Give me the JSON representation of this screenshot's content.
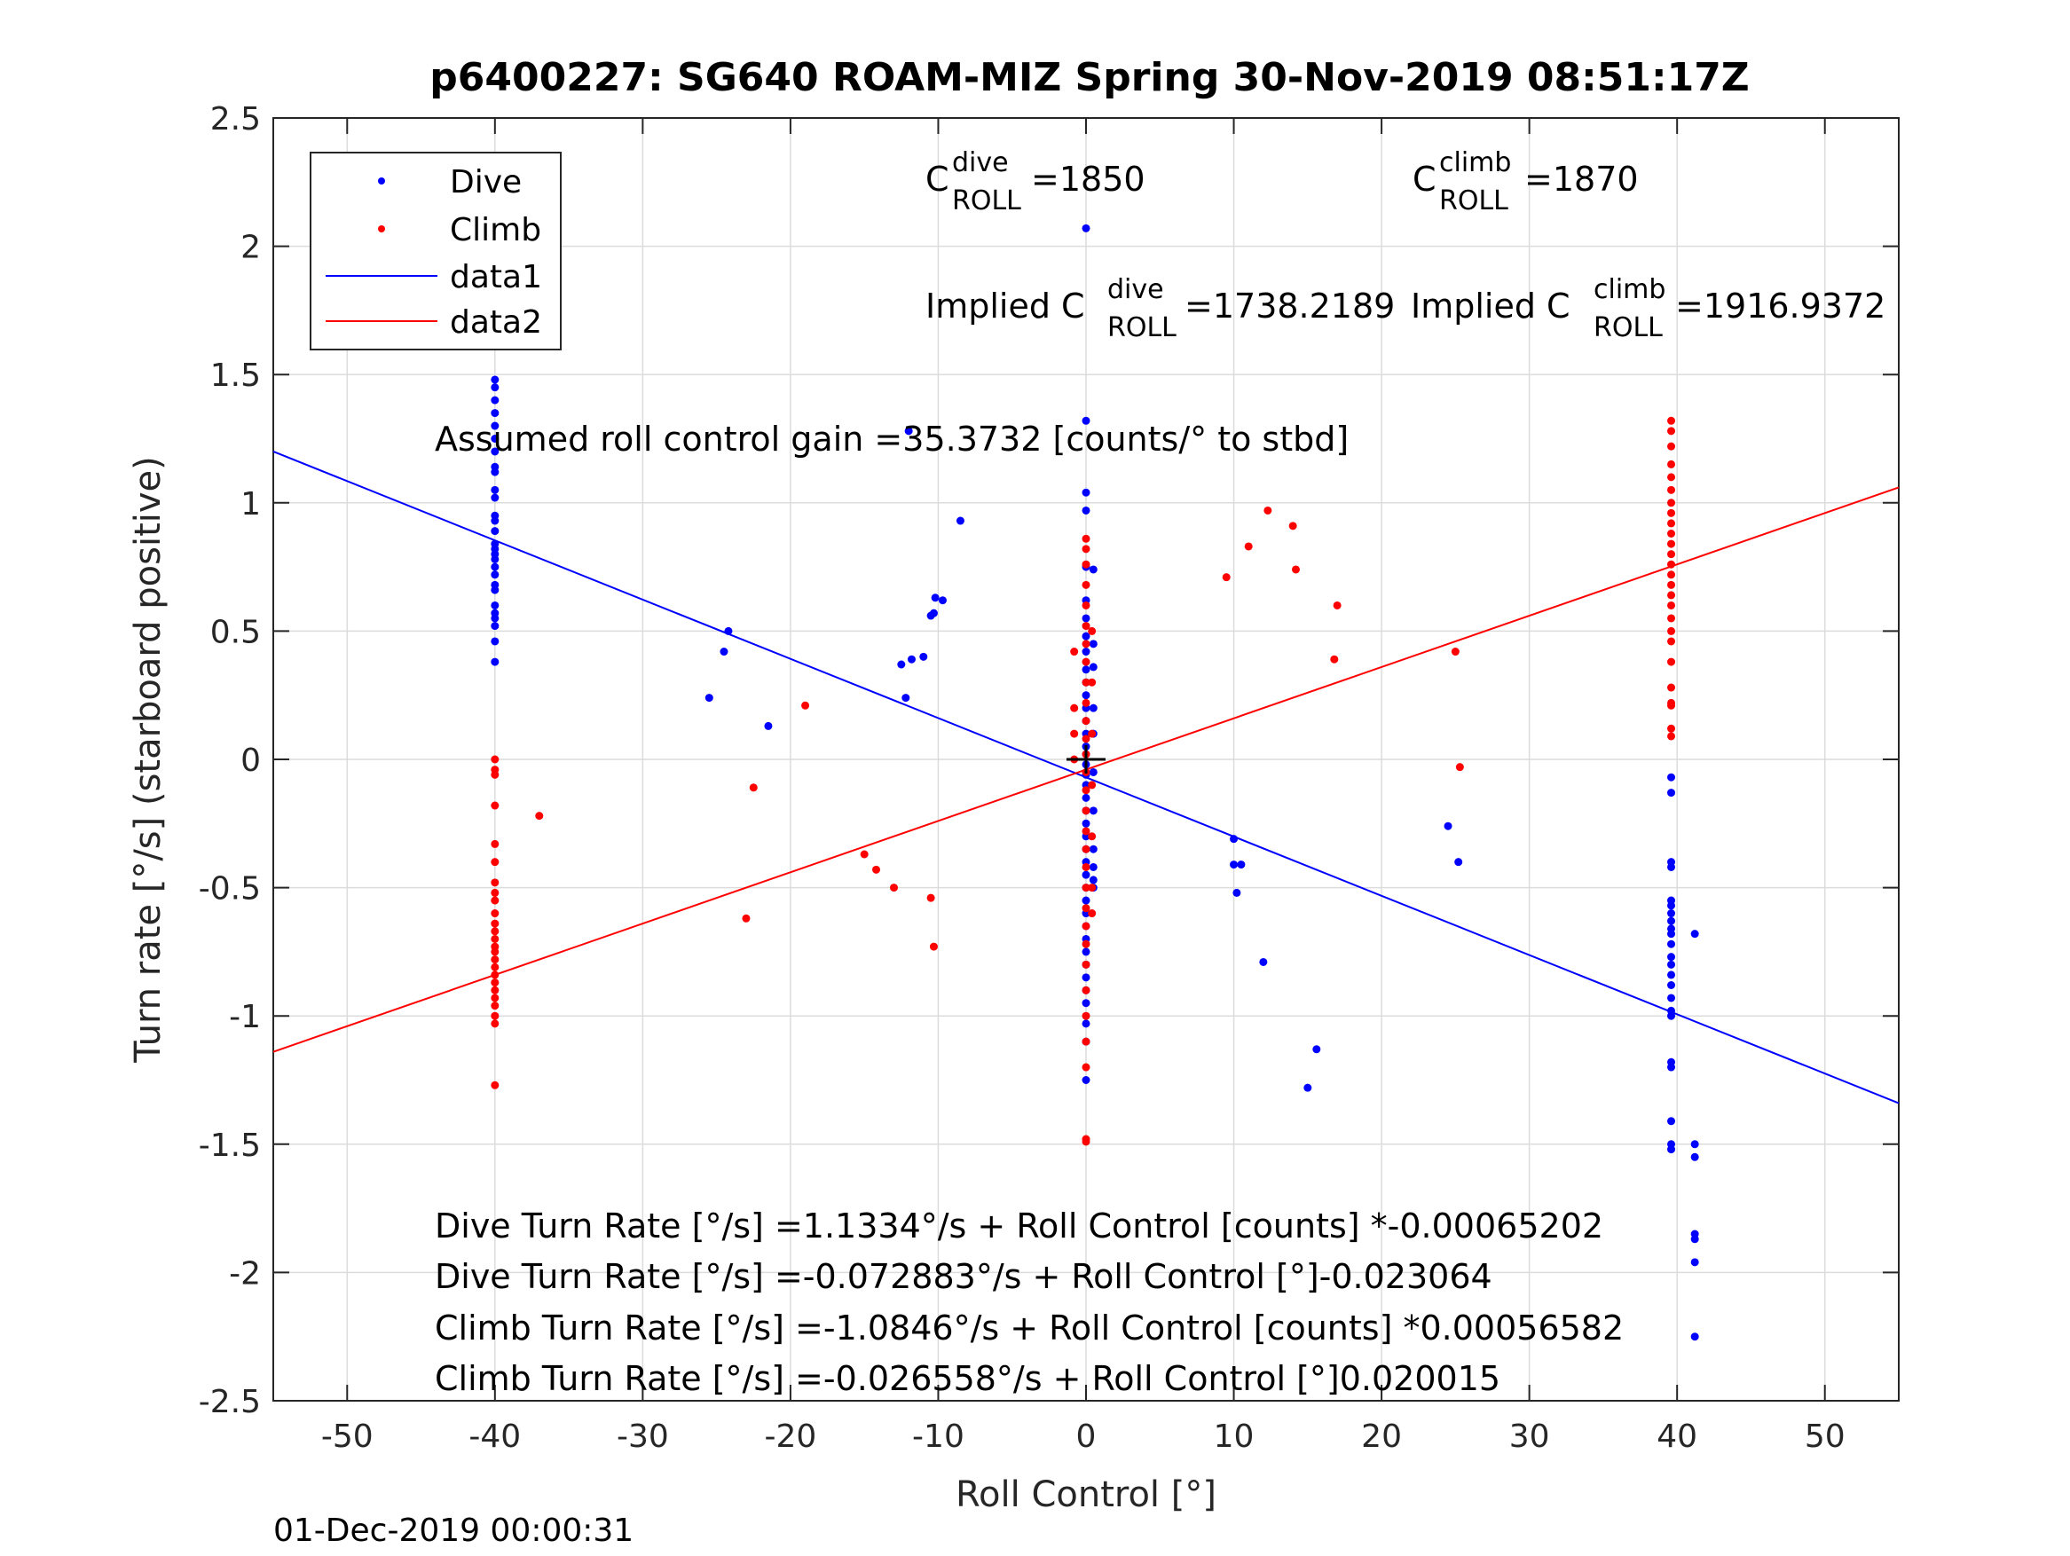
{
  "chart_data": {
    "type": "scatter",
    "title": "p6400227: SG640 ROAM-MIZ Spring 30-Nov-2019 08:51:17Z",
    "xlabel": "Roll Control [°]",
    "ylabel": "Turn rate [°/s] (starboard positive)",
    "xlim": [
      -55,
      55
    ],
    "ylim": [
      -2.5,
      2.5
    ],
    "xticks": [
      -50,
      -40,
      -30,
      -20,
      -10,
      0,
      10,
      20,
      30,
      40,
      50
    ],
    "yticks": [
      -2.5,
      -2,
      -1.5,
      -1,
      -0.5,
      0,
      0.5,
      1,
      1.5,
      2,
      2.5
    ],
    "xtick_labels": [
      "-50",
      "-40",
      "-30",
      "-20",
      "-10",
      "0",
      "10",
      "20",
      "30",
      "40",
      "50"
    ],
    "ytick_labels": [
      "-2.5",
      "-2",
      "-1.5",
      "-1",
      "-0.5",
      "0",
      "0.5",
      "1",
      "1.5",
      "2",
      "2.5"
    ],
    "grid": true,
    "legend_position": "top-left",
    "series": [
      {
        "name": "Dive",
        "kind": "points",
        "color": "#0000ff",
        "points": [
          [
            -40,
            1.48
          ],
          [
            -40,
            1.45
          ],
          [
            -40,
            1.4
          ],
          [
            -40,
            1.35
          ],
          [
            -40,
            1.3
          ],
          [
            -40,
            1.25
          ],
          [
            -40,
            1.2
          ],
          [
            -40,
            1.14
          ],
          [
            -40,
            1.12
          ],
          [
            -40,
            1.05
          ],
          [
            -40,
            1.02
          ],
          [
            -40,
            0.95
          ],
          [
            -40,
            0.93
          ],
          [
            -40,
            0.89
          ],
          [
            -40,
            0.84
          ],
          [
            -40,
            0.82
          ],
          [
            -40,
            0.8
          ],
          [
            -40,
            0.78
          ],
          [
            -40,
            0.75
          ],
          [
            -40,
            0.72
          ],
          [
            -40,
            0.68
          ],
          [
            -40,
            0.66
          ],
          [
            -40,
            0.6
          ],
          [
            -40,
            0.57
          ],
          [
            -40,
            0.55
          ],
          [
            -40,
            0.52
          ],
          [
            -40,
            0.46
          ],
          [
            -40,
            0.38
          ],
          [
            -25.5,
            0.24
          ],
          [
            -24.5,
            0.42
          ],
          [
            -24.2,
            0.5
          ],
          [
            -21.5,
            0.13
          ],
          [
            -12.5,
            0.37
          ],
          [
            -12.2,
            0.24
          ],
          [
            -12,
            1.28
          ],
          [
            -11.8,
            0.39
          ],
          [
            -11,
            0.4
          ],
          [
            -10.5,
            0.56
          ],
          [
            -10.3,
            0.57
          ],
          [
            -10.2,
            0.63
          ],
          [
            -9.7,
            0.62
          ],
          [
            -8.5,
            0.93
          ],
          [
            0,
            2.07
          ],
          [
            0,
            1.32
          ],
          [
            0,
            1.04
          ],
          [
            0,
            0.97
          ],
          [
            0,
            0.75
          ],
          [
            0,
            0.62
          ],
          [
            0,
            0.55
          ],
          [
            0,
            0.48
          ],
          [
            0,
            0.42
          ],
          [
            0,
            0.35
          ],
          [
            0,
            0.3
          ],
          [
            0,
            0.25
          ],
          [
            0,
            0.2
          ],
          [
            0,
            0.15
          ],
          [
            0,
            0.1
          ],
          [
            0,
            0.05
          ],
          [
            0,
            0.02
          ],
          [
            0,
            -0.02
          ],
          [
            0,
            -0.06
          ],
          [
            0,
            -0.1
          ],
          [
            0,
            -0.15
          ],
          [
            0,
            -0.2
          ],
          [
            0,
            -0.25
          ],
          [
            0,
            -0.3
          ],
          [
            0,
            -0.35
          ],
          [
            0,
            -0.4
          ],
          [
            0,
            -0.45
          ],
          [
            0,
            -0.5
          ],
          [
            0,
            -0.55
          ],
          [
            0,
            -0.6
          ],
          [
            0,
            -0.65
          ],
          [
            0,
            -0.7
          ],
          [
            0,
            -0.75
          ],
          [
            0,
            -0.8
          ],
          [
            0,
            -0.85
          ],
          [
            0,
            -0.9
          ],
          [
            0,
            -0.95
          ],
          [
            0,
            -1.03
          ],
          [
            0,
            -1.1
          ],
          [
            0,
            -1.25
          ],
          [
            0.5,
            0.74
          ],
          [
            0.5,
            0.45
          ],
          [
            0.5,
            0.36
          ],
          [
            0.5,
            0.2
          ],
          [
            0.5,
            0.1
          ],
          [
            0.5,
            -0.05
          ],
          [
            0.5,
            -0.2
          ],
          [
            0.5,
            -0.35
          ],
          [
            0.5,
            -0.42
          ],
          [
            0.5,
            -0.47
          ],
          [
            0.5,
            -0.5
          ],
          [
            10,
            -0.31
          ],
          [
            10,
            -0.41
          ],
          [
            10.2,
            -0.52
          ],
          [
            10.5,
            -0.41
          ],
          [
            12,
            -0.79
          ],
          [
            15,
            -1.28
          ],
          [
            15.6,
            -1.13
          ],
          [
            24.5,
            -0.26
          ],
          [
            25.2,
            -0.4
          ],
          [
            39.6,
            -0.07
          ],
          [
            39.6,
            -0.13
          ],
          [
            39.6,
            -0.4
          ],
          [
            39.6,
            -0.42
          ],
          [
            39.6,
            -0.55
          ],
          [
            39.6,
            -0.57
          ],
          [
            39.6,
            -0.6
          ],
          [
            39.6,
            -0.63
          ],
          [
            39.6,
            -0.66
          ],
          [
            39.6,
            -0.68
          ],
          [
            39.6,
            -0.72
          ],
          [
            39.6,
            -0.77
          ],
          [
            39.6,
            -0.8
          ],
          [
            39.6,
            -0.84
          ],
          [
            39.6,
            -0.88
          ],
          [
            39.6,
            -0.93
          ],
          [
            39.6,
            -0.98
          ],
          [
            39.6,
            -1.0
          ],
          [
            39.6,
            -1.18
          ],
          [
            39.6,
            -1.2
          ],
          [
            39.6,
            -1.41
          ],
          [
            39.6,
            -1.5
          ],
          [
            39.6,
            -1.52
          ],
          [
            41.2,
            -0.68
          ],
          [
            41.2,
            -1.5
          ],
          [
            41.2,
            -1.55
          ],
          [
            41.2,
            -1.85
          ],
          [
            41.2,
            -1.87
          ],
          [
            41.2,
            -1.96
          ],
          [
            41.2,
            -2.25
          ]
        ]
      },
      {
        "name": "Climb",
        "kind": "points",
        "color": "#ff0000",
        "points": [
          [
            -40,
            0.0
          ],
          [
            -40,
            -0.04
          ],
          [
            -40,
            -0.06
          ],
          [
            -40,
            -0.18
          ],
          [
            -40,
            -0.33
          ],
          [
            -40,
            -0.4
          ],
          [
            -40,
            -0.48
          ],
          [
            -40,
            -0.52
          ],
          [
            -40,
            -0.55
          ],
          [
            -40,
            -0.6
          ],
          [
            -40,
            -0.64
          ],
          [
            -40,
            -0.67
          ],
          [
            -40,
            -0.7
          ],
          [
            -40,
            -0.73
          ],
          [
            -40,
            -0.75
          ],
          [
            -40,
            -0.78
          ],
          [
            -40,
            -0.81
          ],
          [
            -40,
            -0.84
          ],
          [
            -40,
            -0.87
          ],
          [
            -40,
            -0.9
          ],
          [
            -40,
            -0.93
          ],
          [
            -40,
            -0.96
          ],
          [
            -40,
            -1.0
          ],
          [
            -40,
            -1.03
          ],
          [
            -40,
            -1.27
          ],
          [
            -37,
            -0.22
          ],
          [
            -23,
            -0.62
          ],
          [
            -22.5,
            -0.11
          ],
          [
            -19,
            0.21
          ],
          [
            -15,
            -0.37
          ],
          [
            -14.2,
            -0.43
          ],
          [
            -13,
            -0.5
          ],
          [
            -10.5,
            -0.54
          ],
          [
            -10.3,
            -0.73
          ],
          [
            -0.8,
            0.42
          ],
          [
            -0.8,
            0.2
          ],
          [
            -0.8,
            0.1
          ],
          [
            -0.8,
            0.0
          ],
          [
            0,
            0.86
          ],
          [
            0,
            0.82
          ],
          [
            0,
            0.76
          ],
          [
            0,
            0.68
          ],
          [
            0,
            0.6
          ],
          [
            0,
            0.52
          ],
          [
            0,
            0.45
          ],
          [
            0,
            0.38
          ],
          [
            0,
            0.3
          ],
          [
            0,
            0.22
          ],
          [
            0,
            0.15
          ],
          [
            0,
            0.08
          ],
          [
            0,
            0.02
          ],
          [
            0,
            -0.05
          ],
          [
            0,
            -0.12
          ],
          [
            0,
            -0.2
          ],
          [
            0,
            -0.28
          ],
          [
            0,
            -0.35
          ],
          [
            0,
            -0.42
          ],
          [
            0,
            -0.5
          ],
          [
            0,
            -0.58
          ],
          [
            0,
            -0.65
          ],
          [
            0,
            -0.72
          ],
          [
            0,
            -0.8
          ],
          [
            0,
            -0.9
          ],
          [
            0,
            -1.0
          ],
          [
            0,
            -1.1
          ],
          [
            0,
            -1.2
          ],
          [
            0,
            -1.48
          ],
          [
            0,
            -1.49
          ],
          [
            0.4,
            0.5
          ],
          [
            0.4,
            0.3
          ],
          [
            0.4,
            0.1
          ],
          [
            0.4,
            -0.1
          ],
          [
            0.4,
            -0.3
          ],
          [
            0.4,
            -0.5
          ],
          [
            0.4,
            -0.6
          ],
          [
            9.5,
            0.71
          ],
          [
            11,
            0.83
          ],
          [
            12.3,
            0.97
          ],
          [
            14,
            0.91
          ],
          [
            14.2,
            0.74
          ],
          [
            16.8,
            0.39
          ],
          [
            17,
            0.6
          ],
          [
            25,
            0.42
          ],
          [
            25.3,
            -0.03
          ],
          [
            39.6,
            1.32
          ],
          [
            39.6,
            1.28
          ],
          [
            39.6,
            1.22
          ],
          [
            39.6,
            1.15
          ],
          [
            39.6,
            1.1
          ],
          [
            39.6,
            1.05
          ],
          [
            39.6,
            1.0
          ],
          [
            39.6,
            0.96
          ],
          [
            39.6,
            0.92
          ],
          [
            39.6,
            0.88
          ],
          [
            39.6,
            0.84
          ],
          [
            39.6,
            0.8
          ],
          [
            39.6,
            0.76
          ],
          [
            39.6,
            0.72
          ],
          [
            39.6,
            0.68
          ],
          [
            39.6,
            0.64
          ],
          [
            39.6,
            0.6
          ],
          [
            39.6,
            0.55
          ],
          [
            39.6,
            0.5
          ],
          [
            39.6,
            0.46
          ],
          [
            39.6,
            0.38
          ],
          [
            39.6,
            0.28
          ],
          [
            39.6,
            0.22
          ],
          [
            39.6,
            0.21
          ],
          [
            39.6,
            0.12
          ],
          [
            39.6,
            0.09
          ]
        ]
      },
      {
        "name": "data1",
        "kind": "line",
        "color": "#0000ff",
        "x": [
          -55,
          55
        ],
        "y": [
          1.2,
          -1.34
        ]
      },
      {
        "name": "data2",
        "kind": "line",
        "color": "#ff0000",
        "x": [
          -55,
          55
        ],
        "y": [
          -1.14,
          1.06
        ]
      }
    ],
    "center_marker": {
      "x": 0,
      "y": 0,
      "shape": "plus",
      "color": "#000000"
    },
    "annotations": {
      "c_dive": {
        "prefix": "C",
        "sup": "dive",
        "sub": "ROLL",
        "value": " =1850"
      },
      "c_climb": {
        "prefix": "C",
        "sup": "climb",
        "sub": "ROLL",
        "value": " =1870"
      },
      "implied_dive": {
        "prefix": "Implied C",
        "sup": "dive",
        "sub": "ROLL",
        "value": " =1738.2189"
      },
      "implied_climb": {
        "prefix": "Implied C",
        "sup": "climb",
        "sub": "ROLL",
        "value": " =1916.9372"
      },
      "gain": "Assumed roll control gain =35.3732 [counts/° to stbd]",
      "eq_lines": [
        "Dive Turn Rate [°/s] =1.1334°/s + Roll Control [counts] *-0.00065202",
        "Dive Turn Rate [°/s] =-0.072883°/s + Roll Control [°]-0.023064",
        "Climb Turn Rate [°/s] =-1.0846°/s + Roll Control [counts] *0.00056582",
        "Climb Turn Rate [°/s] =-0.026558°/s + Roll Control [°]0.020015"
      ]
    },
    "footer": "01-Dec-2019 00:00:31"
  }
}
